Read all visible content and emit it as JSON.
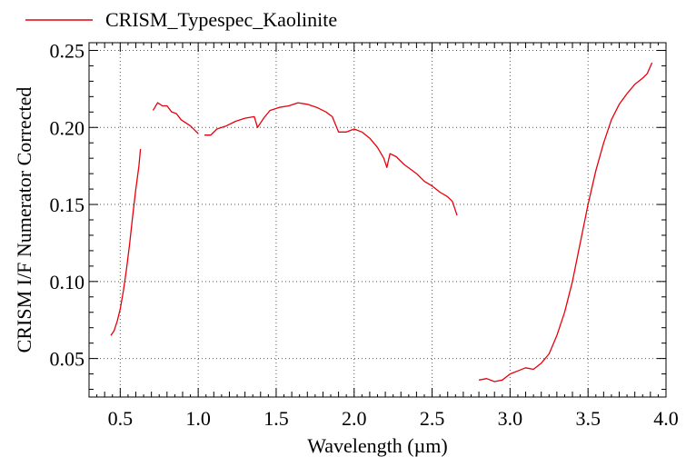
{
  "chart_data": {
    "type": "line",
    "title": "",
    "xlabel": "Wavelength (µm)",
    "ylabel": "CRISM I/F Numerator Corrected",
    "xlim": [
      0.3,
      4.0
    ],
    "ylim": [
      0.025,
      0.255
    ],
    "x_ticks": [
      0.5,
      1.0,
      1.5,
      2.0,
      2.5,
      3.0,
      3.5,
      4.0
    ],
    "x_tick_labels": [
      "0.5",
      "1.0",
      "1.5",
      "2.0",
      "2.5",
      "3.0",
      "3.5",
      "4.0"
    ],
    "y_ticks": [
      0.05,
      0.1,
      0.15,
      0.2,
      0.25
    ],
    "y_tick_labels": [
      "0.05",
      "0.10",
      "0.15",
      "0.20",
      "0.25"
    ],
    "grid": true,
    "legend_position": "top-left",
    "series": [
      {
        "name": "CRISM_Typespec_Kaolinite",
        "color": "#e8000b",
        "segments": [
          [
            [
              0.44,
              0.065
            ],
            [
              0.46,
              0.068
            ],
            [
              0.48,
              0.074
            ],
            [
              0.5,
              0.082
            ],
            [
              0.52,
              0.094
            ],
            [
              0.54,
              0.108
            ],
            [
              0.56,
              0.124
            ],
            [
              0.58,
              0.143
            ],
            [
              0.6,
              0.16
            ],
            [
              0.62,
              0.175
            ],
            [
              0.63,
              0.186
            ]
          ],
          [
            [
              0.71,
              0.211
            ],
            [
              0.74,
              0.216
            ],
            [
              0.77,
              0.214
            ],
            [
              0.8,
              0.214
            ],
            [
              0.83,
              0.21
            ],
            [
              0.86,
              0.209
            ],
            [
              0.89,
              0.205
            ],
            [
              0.92,
              0.203
            ],
            [
              0.95,
              0.201
            ],
            [
              0.98,
              0.198
            ],
            [
              1.0,
              0.196
            ]
          ],
          [
            [
              1.04,
              0.195
            ],
            [
              1.08,
              0.195
            ],
            [
              1.12,
              0.199
            ],
            [
              1.18,
              0.201
            ],
            [
              1.24,
              0.204
            ],
            [
              1.3,
              0.206
            ],
            [
              1.36,
              0.207
            ],
            [
              1.38,
              0.2
            ],
            [
              1.42,
              0.206
            ],
            [
              1.46,
              0.211
            ],
            [
              1.52,
              0.213
            ],
            [
              1.58,
              0.214
            ],
            [
              1.64,
              0.216
            ],
            [
              1.7,
              0.215
            ],
            [
              1.76,
              0.213
            ],
            [
              1.82,
              0.21
            ],
            [
              1.86,
              0.207
            ],
            [
              1.9,
              0.197
            ],
            [
              1.95,
              0.197
            ],
            [
              2.0,
              0.199
            ],
            [
              2.05,
              0.197
            ],
            [
              2.1,
              0.193
            ],
            [
              2.15,
              0.187
            ],
            [
              2.19,
              0.18
            ],
            [
              2.21,
              0.174
            ],
            [
              2.23,
              0.183
            ],
            [
              2.27,
              0.181
            ],
            [
              2.32,
              0.176
            ],
            [
              2.36,
              0.173
            ],
            [
              2.4,
              0.17
            ],
            [
              2.45,
              0.165
            ],
            [
              2.5,
              0.162
            ],
            [
              2.55,
              0.158
            ],
            [
              2.6,
              0.155
            ],
            [
              2.63,
              0.152
            ],
            [
              2.66,
              0.143
            ]
          ],
          [
            [
              2.8,
              0.036
            ],
            [
              2.85,
              0.037
            ],
            [
              2.9,
              0.035
            ],
            [
              2.95,
              0.036
            ],
            [
              3.0,
              0.04
            ],
            [
              3.05,
              0.042
            ],
            [
              3.1,
              0.044
            ],
            [
              3.15,
              0.043
            ],
            [
              3.2,
              0.047
            ],
            [
              3.25,
              0.053
            ],
            [
              3.3,
              0.065
            ],
            [
              3.35,
              0.08
            ],
            [
              3.4,
              0.1
            ],
            [
              3.45,
              0.125
            ],
            [
              3.5,
              0.15
            ],
            [
              3.55,
              0.172
            ],
            [
              3.6,
              0.19
            ],
            [
              3.65,
              0.205
            ],
            [
              3.7,
              0.215
            ],
            [
              3.75,
              0.222
            ],
            [
              3.8,
              0.228
            ],
            [
              3.85,
              0.232
            ],
            [
              3.88,
              0.235
            ],
            [
              3.91,
              0.242
            ]
          ]
        ]
      }
    ]
  }
}
